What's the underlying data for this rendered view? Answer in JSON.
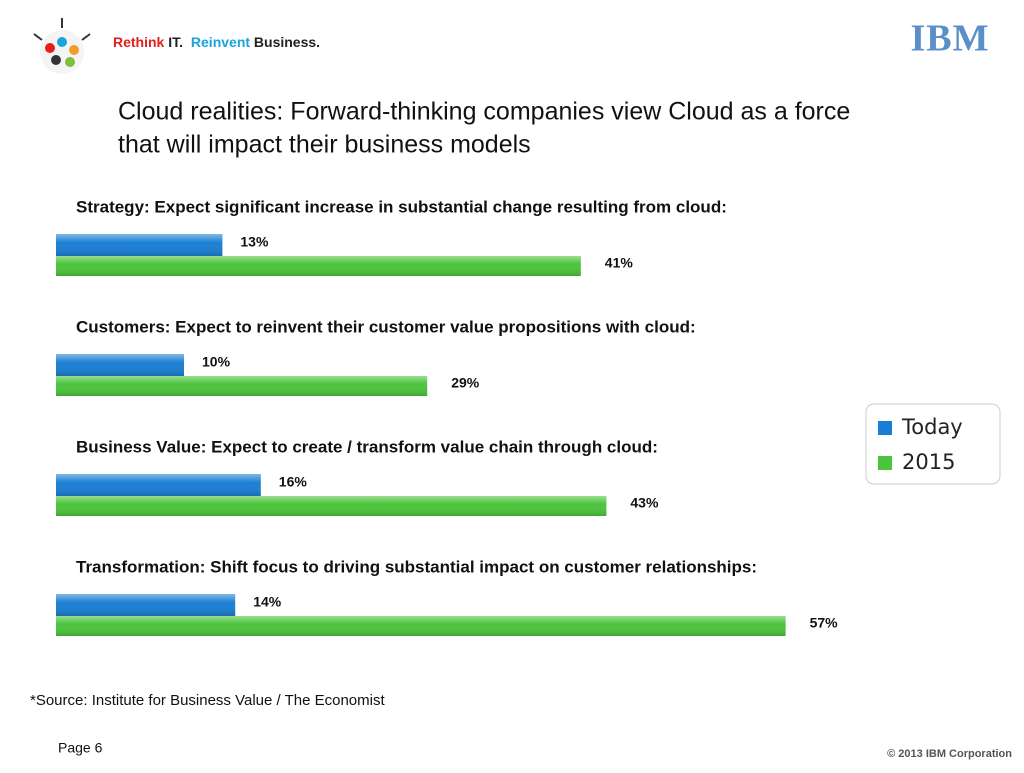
{
  "header": {
    "tagline": [
      "Rethink",
      "IT.",
      "Reinvent",
      "Business."
    ],
    "logo": "IBM"
  },
  "chart_data": {
    "type": "bar",
    "orientation": "horizontal",
    "title": [
      "Cloud realities: Forward-thinking companies view Cloud as a force",
      "that will impact their business models"
    ],
    "categories": [
      "Strategy: Expect significant increase in substantial change resulting from cloud:",
      "Customers: Expect to reinvent their customer value propositions with cloud:",
      "Business Value: Expect  to create / transform value chain through cloud:",
      "Transformation: Shift focus to driving substantial impact on customer relationships:"
    ],
    "series": [
      {
        "name": "Today",
        "color": "#1a7fd4",
        "values": [
          13,
          10,
          16,
          14
        ],
        "value_labels": [
          "13%",
          "10%",
          "16%",
          "14%"
        ]
      },
      {
        "name": "2015",
        "color": "#4cc43c",
        "values": [
          41,
          29,
          43,
          57
        ],
        "value_labels": [
          "41%",
          "29%",
          "43%",
          "57%"
        ]
      }
    ],
    "legend": "right"
  },
  "footer": {
    "source": "*Source: Institute for Business Value / The Economist",
    "page": "Page 6",
    "copyright": "© 2013 IBM Corporation"
  }
}
